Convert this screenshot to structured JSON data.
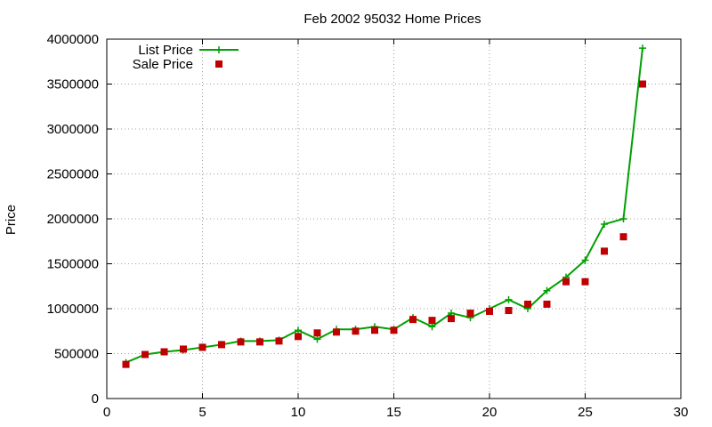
{
  "chart_data": {
    "type": "line",
    "title": "Feb 2002 95032 Home Prices",
    "xlabel": "",
    "ylabel": "Price",
    "xlim": [
      0,
      30
    ],
    "ylim": [
      0,
      4000000
    ],
    "xticks": [
      0,
      5,
      10,
      15,
      20,
      25,
      30
    ],
    "yticks": [
      0,
      500000,
      1000000,
      1500000,
      2000000,
      2500000,
      3000000,
      3500000,
      4000000
    ],
    "grid": true,
    "legend_position": "top-left",
    "series": [
      {
        "name": "List Price",
        "style": "line-plus",
        "color": "#00a000",
        "x": [
          1,
          2,
          3,
          4,
          5,
          6,
          7,
          8,
          9,
          10,
          11,
          12,
          13,
          14,
          15,
          16,
          17,
          18,
          19,
          20,
          21,
          22,
          23,
          24,
          25,
          26,
          27,
          28
        ],
        "values": [
          400000,
          490000,
          520000,
          540000,
          570000,
          600000,
          640000,
          640000,
          650000,
          760000,
          660000,
          770000,
          770000,
          800000,
          770000,
          900000,
          800000,
          950000,
          900000,
          1000000,
          1100000,
          1000000,
          1200000,
          1350000,
          1540000,
          1940000,
          2000000,
          3900000
        ]
      },
      {
        "name": "Sale Price",
        "style": "square",
        "color": "#c00000",
        "x": [
          1,
          2,
          3,
          4,
          5,
          6,
          7,
          8,
          9,
          10,
          11,
          12,
          13,
          14,
          15,
          16,
          17,
          18,
          19,
          20,
          21,
          22,
          23,
          24,
          25,
          26,
          27,
          28
        ],
        "values": [
          380000,
          490000,
          520000,
          550000,
          570000,
          600000,
          630000,
          630000,
          640000,
          690000,
          730000,
          740000,
          750000,
          760000,
          760000,
          880000,
          870000,
          890000,
          950000,
          970000,
          980000,
          1050000,
          1050000,
          1300000,
          1300000,
          1640000,
          1800000,
          3500000
        ]
      }
    ]
  }
}
